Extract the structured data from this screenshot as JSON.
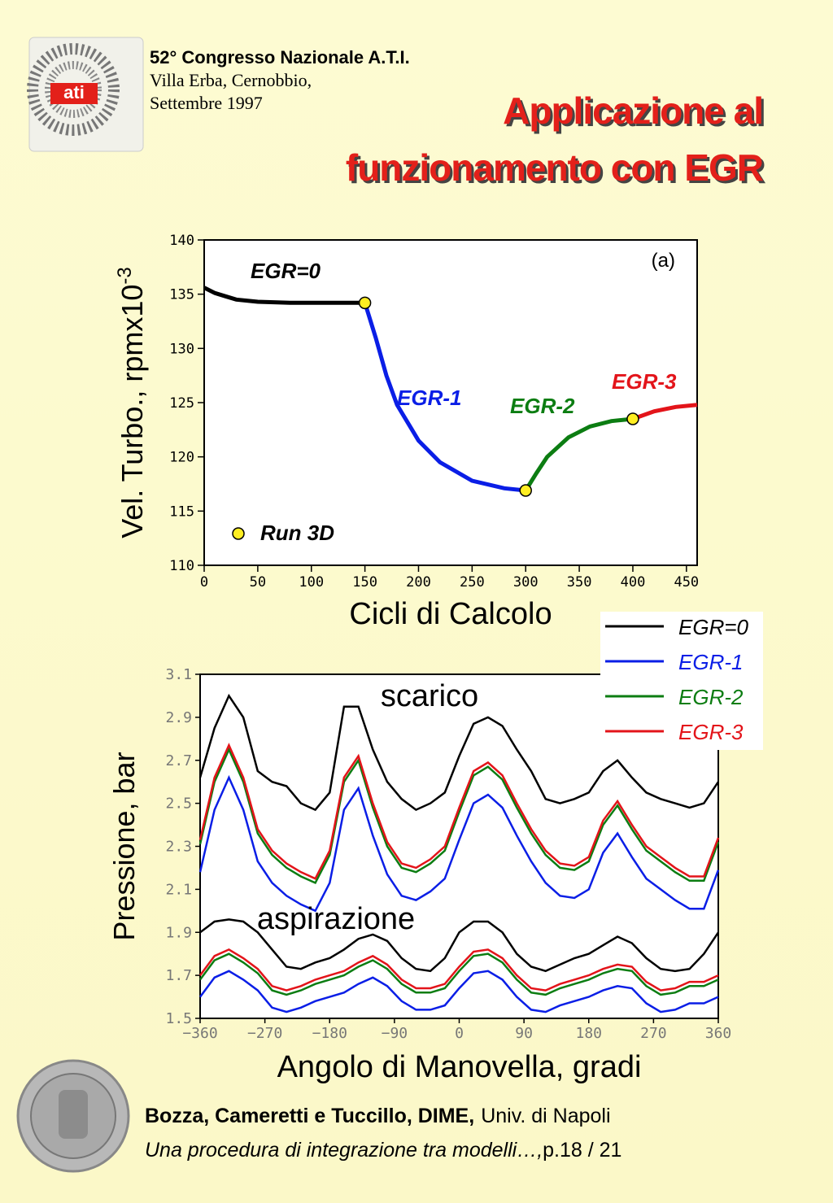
{
  "header": {
    "line1": "52° Congresso Nazionale A.T.I.",
    "line2": "Villa Erba, Cernobbio,",
    "line3": "Settembre 1997",
    "logo_text": "ati"
  },
  "title": [
    "Applicazione al",
    "funzionamento con EGR"
  ],
  "chart_data": [
    {
      "type": "line",
      "x_label": "Cicli di Calcolo",
      "y_label": "Vel. Turbo., rpmx10",
      "y_label_exponent": "-3",
      "panel_label": "(a)",
      "xlim": [
        0,
        460
      ],
      "ylim": [
        110,
        140
      ],
      "xticks": [
        0,
        50,
        100,
        150,
        200,
        250,
        300,
        350,
        400,
        450
      ],
      "yticks": [
        110,
        115,
        120,
        125,
        130,
        135,
        140
      ],
      "series": [
        {
          "name": "EGR=0",
          "color": "#000000",
          "x": [
            0,
            10,
            20,
            30,
            50,
            80,
            120,
            150
          ],
          "values": [
            135.6,
            135.1,
            134.8,
            134.5,
            134.3,
            134.2,
            134.2,
            134.2
          ]
        },
        {
          "name": "EGR-1",
          "color": "#0a1ee6",
          "x": [
            150,
            160,
            170,
            180,
            200,
            220,
            250,
            280,
            300
          ],
          "values": [
            134.2,
            131,
            127.5,
            124.8,
            121.5,
            119.5,
            117.8,
            117.1,
            116.9
          ]
        },
        {
          "name": "EGR-2",
          "color": "#0c7d12",
          "x": [
            300,
            310,
            320,
            340,
            360,
            380,
            400
          ],
          "values": [
            116.9,
            118.5,
            120,
            121.8,
            122.8,
            123.3,
            123.5
          ]
        },
        {
          "name": "EGR-3",
          "color": "#e3141a",
          "x": [
            400,
            420,
            440,
            460
          ],
          "values": [
            123.5,
            124.2,
            124.6,
            124.8
          ]
        }
      ],
      "markers": {
        "name": "Run 3D",
        "color": "#ffee22",
        "x": [
          150,
          300,
          400
        ],
        "values": [
          134.2,
          116.9,
          123.5
        ]
      }
    },
    {
      "type": "line",
      "x_label": "Angolo di Manovella, gradi",
      "y_label": "Pressione, bar",
      "xlim": [
        -360,
        360
      ],
      "ylim": [
        1.5,
        3.1
      ],
      "xticks": [
        {
          "value": -360,
          "label": "−360"
        },
        {
          "value": -270,
          "label": "−270"
        },
        {
          "value": -180,
          "label": "−180"
        },
        {
          "value": -90,
          "label": "−90"
        },
        0,
        90,
        180,
        270,
        360
      ],
      "yticks": [
        1.5,
        1.7,
        1.9,
        2.1,
        2.3,
        2.5,
        2.7,
        2.9,
        3.1
      ],
      "x": [
        -360,
        -340,
        -320,
        -300,
        -280,
        -260,
        -240,
        -220,
        -200,
        -180,
        -160,
        -140,
        -120,
        -100,
        -80,
        -60,
        -40,
        -20,
        0,
        20,
        40,
        60,
        80,
        100,
        120,
        140,
        160,
        180,
        200,
        220,
        240,
        260,
        280,
        300,
        320,
        340,
        360
      ],
      "groups": [
        {
          "label": "scarico",
          "series": [
            {
              "name": "EGR=0",
              "color": "#000000",
              "values": [
                2.62,
                2.85,
                3.0,
                2.9,
                2.65,
                2.6,
                2.58,
                2.5,
                2.47,
                2.55,
                2.95,
                2.95,
                2.75,
                2.6,
                2.52,
                2.47,
                2.5,
                2.55,
                2.72,
                2.87,
                2.9,
                2.86,
                2.75,
                2.65,
                2.52,
                2.5,
                2.52,
                2.55,
                2.65,
                2.7,
                2.62,
                2.55,
                2.52,
                2.5,
                2.48,
                2.5,
                2.6
              ]
            },
            {
              "name": "EGR-1",
              "color": "#0a1ee6",
              "values": [
                2.18,
                2.47,
                2.62,
                2.47,
                2.23,
                2.13,
                2.07,
                2.03,
                2.0,
                2.13,
                2.47,
                2.57,
                2.35,
                2.17,
                2.07,
                2.05,
                2.09,
                2.15,
                2.33,
                2.5,
                2.54,
                2.48,
                2.35,
                2.23,
                2.13,
                2.07,
                2.06,
                2.1,
                2.27,
                2.36,
                2.25,
                2.15,
                2.1,
                2.05,
                2.01,
                2.01,
                2.19
              ]
            },
            {
              "name": "EGR-2",
              "color": "#0c7d12",
              "values": [
                2.31,
                2.6,
                2.75,
                2.6,
                2.36,
                2.26,
                2.2,
                2.16,
                2.13,
                2.26,
                2.6,
                2.7,
                2.48,
                2.3,
                2.2,
                2.18,
                2.22,
                2.28,
                2.46,
                2.63,
                2.67,
                2.61,
                2.48,
                2.36,
                2.26,
                2.2,
                2.19,
                2.23,
                2.4,
                2.49,
                2.38,
                2.28,
                2.23,
                2.18,
                2.14,
                2.14,
                2.32
              ]
            },
            {
              "name": "EGR-3",
              "color": "#e3141a",
              "values": [
                2.33,
                2.62,
                2.77,
                2.62,
                2.38,
                2.28,
                2.22,
                2.18,
                2.15,
                2.28,
                2.62,
                2.72,
                2.5,
                2.32,
                2.22,
                2.2,
                2.24,
                2.3,
                2.48,
                2.65,
                2.69,
                2.63,
                2.5,
                2.38,
                2.28,
                2.22,
                2.21,
                2.25,
                2.42,
                2.51,
                2.4,
                2.3,
                2.25,
                2.2,
                2.16,
                2.16,
                2.34
              ]
            }
          ]
        },
        {
          "label": "aspirazione",
          "series": [
            {
              "color": "#000000",
              "values": [
                1.9,
                1.95,
                1.96,
                1.95,
                1.9,
                1.82,
                1.74,
                1.73,
                1.76,
                1.78,
                1.82,
                1.87,
                1.89,
                1.86,
                1.78,
                1.73,
                1.72,
                1.78,
                1.9,
                1.95,
                1.95,
                1.9,
                1.8,
                1.74,
                1.72,
                1.75,
                1.78,
                1.8,
                1.84,
                1.88,
                1.85,
                1.78,
                1.73,
                1.72,
                1.73,
                1.8,
                1.9
              ]
            },
            {
              "color": "#0a1ee6",
              "values": [
                1.6,
                1.69,
                1.72,
                1.68,
                1.63,
                1.55,
                1.53,
                1.55,
                1.58,
                1.6,
                1.62,
                1.66,
                1.69,
                1.65,
                1.58,
                1.54,
                1.54,
                1.56,
                1.64,
                1.71,
                1.72,
                1.68,
                1.6,
                1.54,
                1.53,
                1.56,
                1.58,
                1.6,
                1.63,
                1.65,
                1.64,
                1.57,
                1.53,
                1.54,
                1.57,
                1.57,
                1.6
              ]
            },
            {
              "color": "#0c7d12",
              "values": [
                1.68,
                1.77,
                1.8,
                1.76,
                1.71,
                1.63,
                1.61,
                1.63,
                1.66,
                1.68,
                1.7,
                1.74,
                1.77,
                1.73,
                1.66,
                1.62,
                1.62,
                1.64,
                1.72,
                1.79,
                1.8,
                1.76,
                1.68,
                1.62,
                1.61,
                1.64,
                1.66,
                1.68,
                1.71,
                1.73,
                1.72,
                1.65,
                1.61,
                1.62,
                1.65,
                1.65,
                1.68
              ]
            },
            {
              "color": "#e3141a",
              "values": [
                1.7,
                1.79,
                1.82,
                1.78,
                1.73,
                1.65,
                1.63,
                1.65,
                1.68,
                1.7,
                1.72,
                1.76,
                1.79,
                1.75,
                1.68,
                1.64,
                1.64,
                1.66,
                1.74,
                1.81,
                1.82,
                1.78,
                1.7,
                1.64,
                1.63,
                1.66,
                1.68,
                1.7,
                1.73,
                1.75,
                1.74,
                1.67,
                1.63,
                1.64,
                1.67,
                1.67,
                1.7
              ]
            }
          ]
        }
      ]
    }
  ],
  "footer": {
    "authors": "Bozza, Cameretti e Tuccillo, DIME,",
    "affiliation": "Univ. di Napoli",
    "subtitle": "Una procedura di integrazione tra modelli…,",
    "page": "p.18 / 21"
  }
}
